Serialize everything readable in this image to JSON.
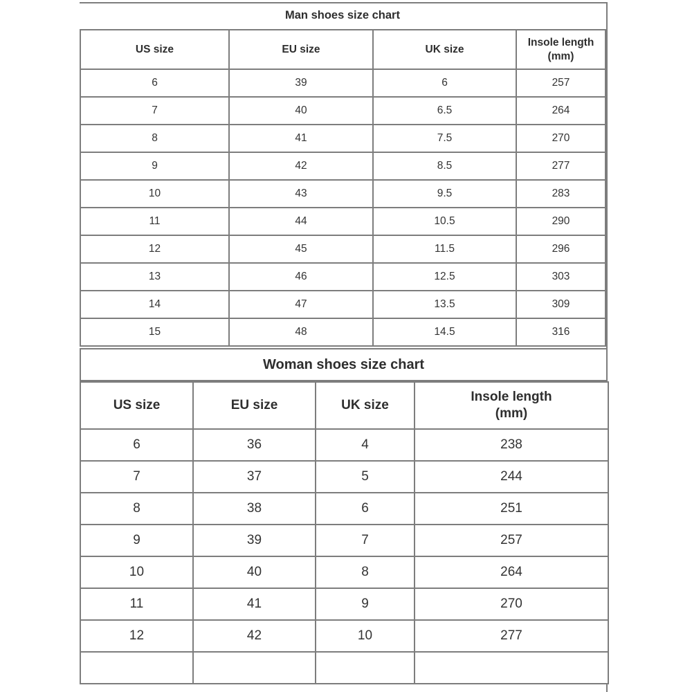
{
  "colors": {
    "border": "#7d7d7d",
    "text": "#333333",
    "title_text": "#2e2e2e",
    "background": "#ffffff"
  },
  "man_chart": {
    "title": "Man shoes size chart",
    "columns": [
      "US size",
      "EU size",
      "UK size",
      "Insole length\n(mm)"
    ],
    "rows": [
      [
        "6",
        "39",
        "6",
        "257"
      ],
      [
        "7",
        "40",
        "6.5",
        "264"
      ],
      [
        "8",
        "41",
        "7.5",
        "270"
      ],
      [
        "9",
        "42",
        "8.5",
        "277"
      ],
      [
        "10",
        "43",
        "9.5",
        "283"
      ],
      [
        "11",
        "44",
        "10.5",
        "290"
      ],
      [
        "12",
        "45",
        "11.5",
        "296"
      ],
      [
        "13",
        "46",
        "12.5",
        "303"
      ],
      [
        "14",
        "47",
        "13.5",
        "309"
      ],
      [
        "15",
        "48",
        "14.5",
        "316"
      ]
    ]
  },
  "woman_chart": {
    "title": "Woman shoes size chart",
    "columns": [
      "US size",
      "EU size",
      "UK size",
      "Insole length\n(mm)"
    ],
    "rows": [
      [
        "6",
        "36",
        "4",
        "238"
      ],
      [
        "7",
        "37",
        "5",
        "244"
      ],
      [
        "8",
        "38",
        "6",
        "251"
      ],
      [
        "9",
        "39",
        "7",
        "257"
      ],
      [
        "10",
        "40",
        "8",
        "264"
      ],
      [
        "11",
        "41",
        "9",
        "270"
      ],
      [
        "12",
        "42",
        "10",
        "277"
      ],
      [
        "",
        "",
        "",
        ""
      ]
    ]
  }
}
